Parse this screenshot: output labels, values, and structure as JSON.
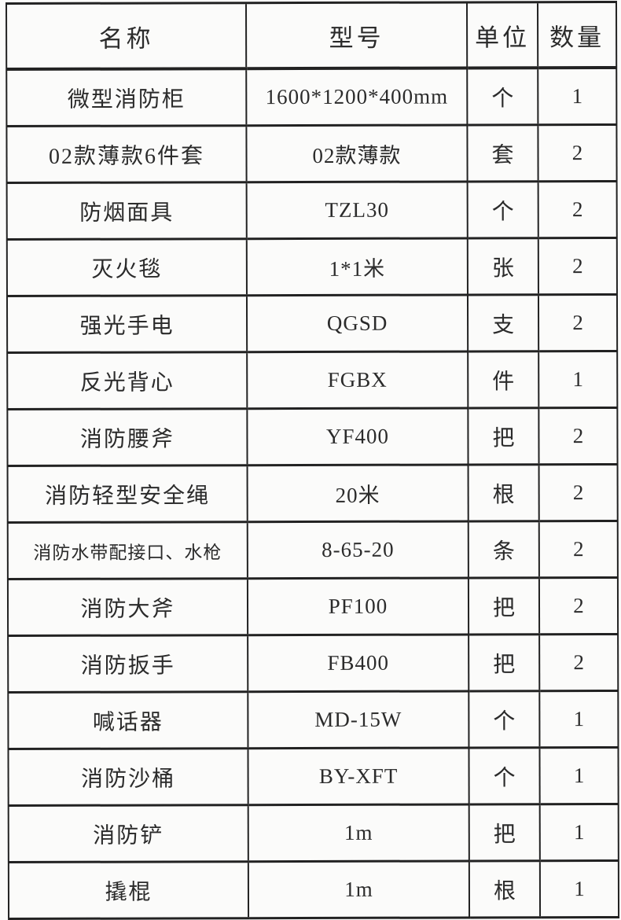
{
  "table": {
    "headers": [
      "名称",
      "型号",
      "单位",
      "数量"
    ],
    "rows": [
      {
        "name": "微型消防柜",
        "model": "1600*1200*400mm",
        "unit": "个",
        "qty": "1"
      },
      {
        "name": "02款薄款6件套",
        "model": "02款薄款",
        "unit": "套",
        "qty": "2"
      },
      {
        "name": "防烟面具",
        "model": "TZL30",
        "unit": "个",
        "qty": "2"
      },
      {
        "name": "灭火毯",
        "model": "1*1米",
        "unit": "张",
        "qty": "2"
      },
      {
        "name": "强光手电",
        "model": "QGSD",
        "unit": "支",
        "qty": "2"
      },
      {
        "name": "反光背心",
        "model": "FGBX",
        "unit": "件",
        "qty": "1"
      },
      {
        "name": "消防腰斧",
        "model": "YF400",
        "unit": "把",
        "qty": "2"
      },
      {
        "name": "消防轻型安全绳",
        "model": "20米",
        "unit": "根",
        "qty": "2"
      },
      {
        "name": "消防水带配接口、水枪",
        "model": "8-65-20",
        "unit": "条",
        "qty": "2"
      },
      {
        "name": "消防大斧",
        "model": "PF100",
        "unit": "把",
        "qty": "2"
      },
      {
        "name": "消防扳手",
        "model": "FB400",
        "unit": "把",
        "qty": "2"
      },
      {
        "name": "喊话器",
        "model": "MD-15W",
        "unit": "个",
        "qty": "1"
      },
      {
        "name": "消防沙桶",
        "model": "BY-XFT",
        "unit": "个",
        "qty": "1"
      },
      {
        "name": "消防铲",
        "model": "1m",
        "unit": "把",
        "qty": "1"
      },
      {
        "name": "撬棍",
        "model": "1m",
        "unit": "根",
        "qty": "1"
      }
    ]
  },
  "colors": {
    "paper": "#fbfbfa",
    "ink": "#2b2b2b",
    "line": "#222222"
  }
}
